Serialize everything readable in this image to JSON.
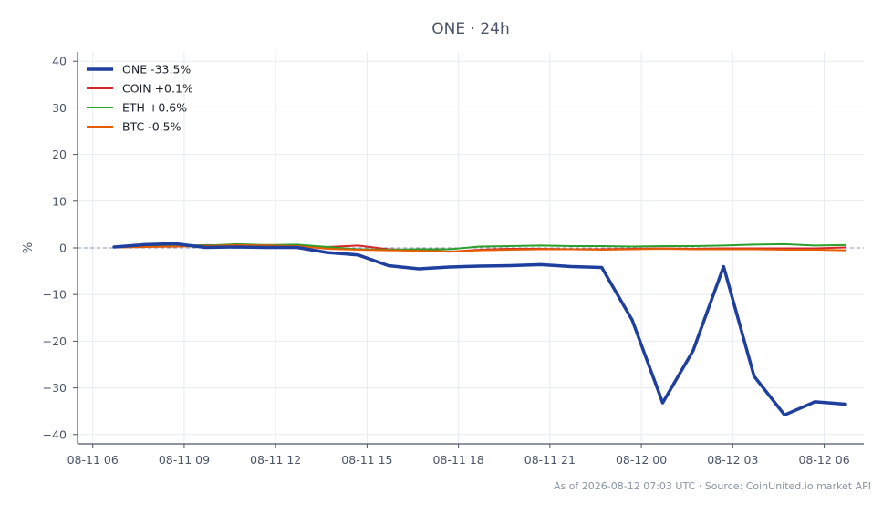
{
  "chart_data": {
    "type": "line",
    "title": "ONE · 24h",
    "ylabel": "%",
    "xlabel": "",
    "ylim": [
      -42,
      42
    ],
    "yticks": [
      40,
      30,
      20,
      10,
      0,
      -10,
      -20,
      -30,
      -40
    ],
    "ytick_labels": [
      "40",
      "30",
      "20",
      "10",
      "0",
      "−10",
      "−20",
      "−30",
      "−40"
    ],
    "xlim": [
      -0.5,
      25.3
    ],
    "xticks": [
      0,
      3,
      6,
      9,
      12,
      15,
      18,
      21,
      24
    ],
    "xtick_labels": [
      "08-11 06",
      "08-11 09",
      "08-11 12",
      "08-11 15",
      "08-11 18",
      "08-11 21",
      "08-12 00",
      "08-12 03",
      "08-12 06"
    ],
    "grid": true,
    "legend_position": "top-left",
    "zero_line": true,
    "x": [
      0.7,
      1.7,
      2.7,
      3.7,
      4.7,
      5.7,
      6.7,
      7.7,
      8.7,
      9.7,
      10.7,
      11.7,
      12.7,
      13.7,
      14.7,
      15.7,
      16.7,
      17.7,
      18.7,
      19.7,
      20.7,
      21.7,
      22.7,
      23.7,
      24.7
    ],
    "series": [
      {
        "name": "ONE -33.5%",
        "color": "#1f3f9e",
        "width": 3.5,
        "values": [
          0.2,
          0.7,
          0.9,
          0.1,
          0.2,
          0.1,
          0.1,
          -1.0,
          -1.5,
          -3.8,
          -4.5,
          -4.1,
          -3.9,
          -3.8,
          -3.6,
          -4.0,
          -4.2,
          -15.5,
          -33.2,
          -22.0,
          -4.0,
          -27.5,
          -35.8,
          -33.0,
          -33.5
        ]
      },
      {
        "name": "COIN +0.1%",
        "color": "#d62728",
        "width": 2,
        "values": [
          0.1,
          0.3,
          0.4,
          0.6,
          0.5,
          0.6,
          0.5,
          0.2,
          0.5,
          -0.3,
          -0.5,
          -0.8,
          -0.4,
          -0.2,
          -0.2,
          -0.3,
          -0.3,
          -0.2,
          -0.1,
          -0.2,
          -0.1,
          -0.1,
          -0.1,
          -0.1,
          0.1
        ]
      },
      {
        "name": "ETH +0.6%",
        "color": "#2ca02c",
        "width": 2,
        "values": [
          0.2,
          0.4,
          0.6,
          0.5,
          0.8,
          0.6,
          0.7,
          0.2,
          -0.3,
          -0.4,
          -0.3,
          -0.3,
          0.3,
          0.4,
          0.5,
          0.4,
          0.4,
          0.3,
          0.4,
          0.4,
          0.5,
          0.7,
          0.8,
          0.5,
          0.6
        ]
      },
      {
        "name": "BTC -0.5%",
        "color": "#e65c00",
        "width": 2,
        "values": [
          0.1,
          0.2,
          0.3,
          0.4,
          0.6,
          0.5,
          0.4,
          -0.2,
          -0.4,
          -0.5,
          -0.6,
          -0.8,
          -0.5,
          -0.4,
          -0.3,
          -0.3,
          -0.4,
          -0.3,
          -0.2,
          -0.3,
          -0.3,
          -0.3,
          -0.4,
          -0.4,
          -0.5
        ]
      }
    ],
    "footer": "As of 2026-08-12 07:03 UTC · Source: CoinUnited.io market API"
  }
}
